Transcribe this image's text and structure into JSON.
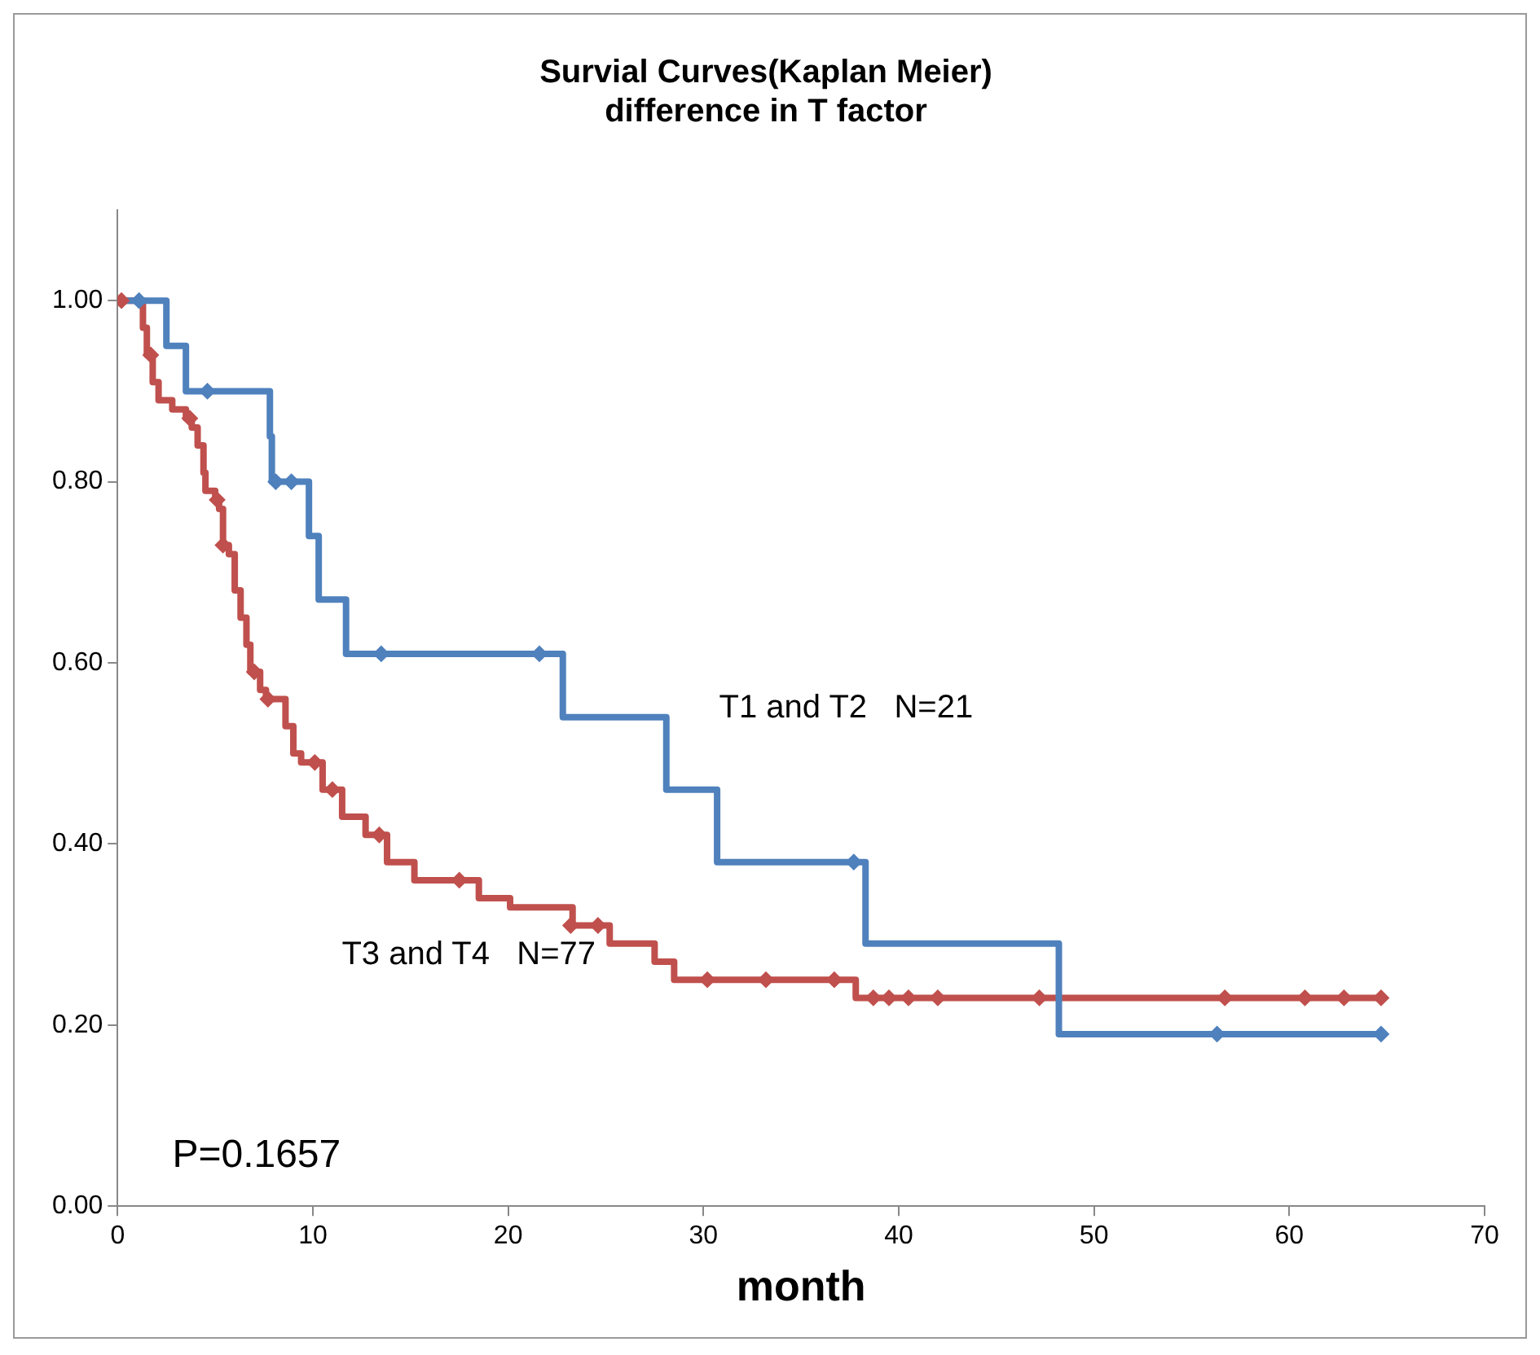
{
  "chart_data": {
    "type": "step",
    "title": "Survial Curves(Kaplan Meier)\ndifference in T factor",
    "xlabel": "month",
    "xlim": [
      0,
      70
    ],
    "xticks": [
      0,
      10,
      20,
      30,
      40,
      50,
      60,
      70
    ],
    "ylim": [
      0,
      1.1
    ],
    "yticks": [
      {
        "value": 0,
        "label": "0.00"
      },
      {
        "value": 0.2,
        "label": "0.20"
      },
      {
        "value": 0.4,
        "label": "0.40"
      },
      {
        "value": 0.6,
        "label": "0.60"
      },
      {
        "value": 0.8,
        "label": "0.80"
      },
      {
        "value": 1,
        "label": "1.00"
      }
    ],
    "grid": false,
    "legend": false,
    "series": [
      {
        "type": "step",
        "name": "T1 and T2   N=21",
        "color": "#4f81bd",
        "marker": "none",
        "x": [
          0,
          2.5,
          3.5,
          7.8,
          7.9,
          9.8,
          10.3,
          11.7,
          22.8,
          28.1,
          30.7,
          38.3,
          48.2,
          64.7
        ],
        "values": [
          1,
          0.95,
          0.9,
          0.85,
          0.8,
          0.74,
          0.67,
          0.61,
          0.54,
          0.46,
          0.38,
          0.29,
          0.19,
          0.19
        ]
      },
      {
        "type": "step",
        "name": "T3 and T4   N=77",
        "color": "#c0504d",
        "marker": "none",
        "x": [
          0,
          1.3,
          1.5,
          1.8,
          2.1,
          2.8,
          3.5,
          3.8,
          4.1,
          4.4,
          4.5,
          5.0,
          5.2,
          5.4,
          5.7,
          6.0,
          6.3,
          6.6,
          6.8,
          7.3,
          7.6,
          8.6,
          9.0,
          9.4,
          10.5,
          11.5,
          12.7,
          13.8,
          15.2,
          18.5,
          20.1,
          23.3,
          25.2,
          27.5,
          28.5,
          37.8,
          64.7
        ],
        "values": [
          1,
          0.97,
          0.94,
          0.91,
          0.89,
          0.88,
          0.87,
          0.86,
          0.84,
          0.81,
          0.79,
          0.78,
          0.77,
          0.73,
          0.72,
          0.68,
          0.65,
          0.62,
          0.59,
          0.57,
          0.56,
          0.53,
          0.5,
          0.49,
          0.46,
          0.43,
          0.41,
          0.38,
          0.36,
          0.34,
          0.33,
          0.31,
          0.29,
          0.27,
          0.25,
          0.23,
          0.23
        ]
      },
      {
        "type": "scatter",
        "color": "#4f81bd",
        "marker": "diamond",
        "x": [
          1.1,
          4.6,
          8.1,
          8.9,
          13.5,
          21.6,
          37.7,
          56.3,
          64.7
        ],
        "values": [
          1,
          0.9,
          0.8,
          0.8,
          0.61,
          0.61,
          0.38,
          0.19,
          0.19
        ]
      },
      {
        "type": "scatter",
        "color": "#c0504d",
        "marker": "diamond",
        "x": [
          0.2,
          1.7,
          3.7,
          5.1,
          5.4,
          7.0,
          7.7,
          10.1,
          11.0,
          13.4,
          17.5,
          23.2,
          24.6,
          30.2,
          33.2,
          36.7,
          38.7,
          39.5,
          40.5,
          42.0,
          47.2,
          56.7,
          60.8,
          62.8,
          64.7
        ],
        "values": [
          1,
          0.94,
          0.87,
          0.78,
          0.73,
          0.59,
          0.56,
          0.49,
          0.46,
          0.41,
          0.36,
          0.31,
          0.31,
          0.25,
          0.25,
          0.25,
          0.23,
          0.23,
          0.23,
          0.23,
          0.23,
          0.23,
          0.23,
          0.23,
          0.23
        ]
      }
    ],
    "annotations": [
      "P=0.1657"
    ]
  }
}
